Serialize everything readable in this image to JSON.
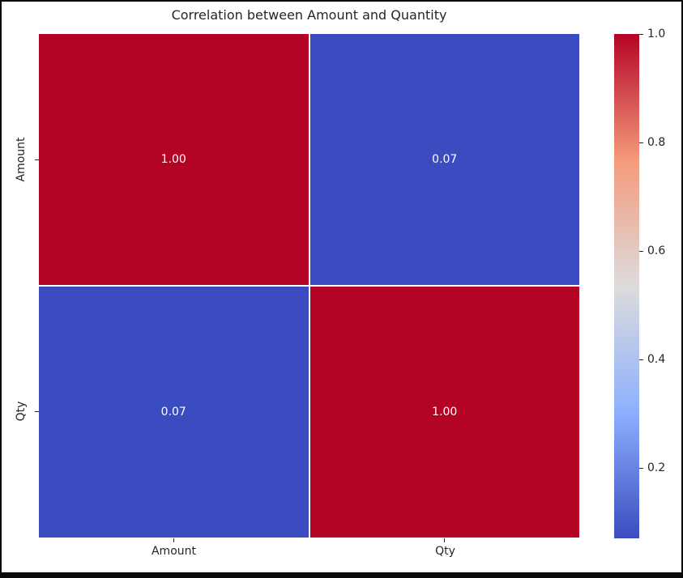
{
  "window": {
    "frame_color": "#0a0a0a",
    "background": "#ffffff"
  },
  "chart_data": {
    "type": "heatmap",
    "title": "Correlation between Amount and Quantity",
    "x_categories": [
      "Amount",
      "Qty"
    ],
    "y_categories": [
      "Amount",
      "Qty"
    ],
    "matrix": [
      [
        1.0,
        0.07
      ],
      [
        0.07,
        1.0
      ]
    ],
    "cell_labels": [
      [
        "1.00",
        "0.07"
      ],
      [
        "0.07",
        "1.00"
      ]
    ],
    "colormap": "coolwarm",
    "vmin": 0.07,
    "vmax": 1.0,
    "colorbar_ticks": [
      "1.0",
      "0.8",
      "0.6",
      "0.4",
      "0.2"
    ],
    "legend_position": "right",
    "grid": false,
    "colors": {
      "high": "#b40426",
      "low": "#3b4cc0",
      "mid": "#dddcdc",
      "quarter_low": "#8db0fe",
      "quarter_high": "#f49a7b",
      "cell_text": "#ffffff",
      "axis_text": "#262626",
      "grid_line": "#ffffff"
    }
  }
}
